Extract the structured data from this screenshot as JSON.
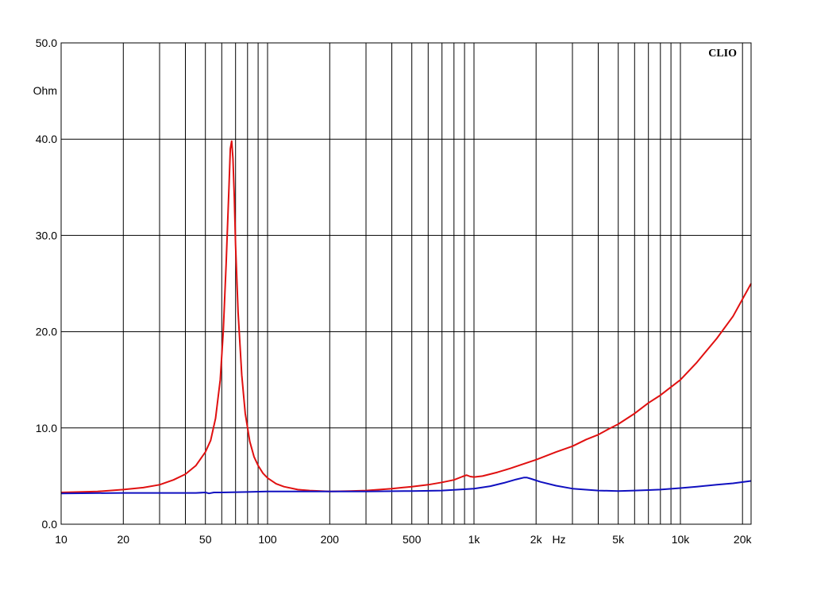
{
  "chart_data": {
    "type": "line",
    "title": "",
    "brand": "CLIO",
    "ylabel": "Ohm",
    "xlabel": "Hz",
    "x_scale": "log",
    "xlim": [
      10,
      22000
    ],
    "ylim": [
      0,
      50
    ],
    "grid": true,
    "y_ticks": [
      {
        "value": 0,
        "label": "0.0"
      },
      {
        "value": 10,
        "label": "10.0"
      },
      {
        "value": 20,
        "label": "20.0"
      },
      {
        "value": 30,
        "label": "30.0"
      },
      {
        "value": 40,
        "label": "40.0"
      },
      {
        "value": 50,
        "label": "50.0"
      }
    ],
    "x_ticks": [
      {
        "value": 10,
        "label": "10"
      },
      {
        "value": 20,
        "label": "20"
      },
      {
        "value": 50,
        "label": "50"
      },
      {
        "value": 100,
        "label": "100"
      },
      {
        "value": 200,
        "label": "200"
      },
      {
        "value": 500,
        "label": "500"
      },
      {
        "value": 1000,
        "label": "1k"
      },
      {
        "value": 2000,
        "label": "2k"
      },
      {
        "value": 5000,
        "label": "5k"
      },
      {
        "value": 10000,
        "label": "10k"
      },
      {
        "value": 20000,
        "label": "20k"
      }
    ],
    "x_minor_gridlines": [
      10,
      20,
      30,
      40,
      50,
      60,
      70,
      80,
      90,
      100,
      200,
      300,
      400,
      500,
      600,
      700,
      800,
      900,
      1000,
      2000,
      3000,
      4000,
      5000,
      6000,
      7000,
      8000,
      9000,
      10000,
      20000
    ],
    "series": [
      {
        "color": "#e01010",
        "x": [
          10,
          15,
          20,
          25,
          30,
          35,
          40,
          45,
          50,
          53,
          56,
          59,
          61,
          63,
          65,
          66,
          67,
          68,
          69,
          70,
          72,
          75,
          78,
          82,
          86,
          90,
          95,
          100,
          110,
          120,
          140,
          160,
          200,
          250,
          300,
          400,
          500,
          600,
          700,
          800,
          880,
          920,
          960,
          1000,
          1100,
          1300,
          1500,
          1700,
          2000,
          2500,
          3000,
          3500,
          4000,
          4500,
          5000,
          6000,
          7000,
          8000,
          10000,
          12000,
          15000,
          18000,
          22000
        ],
        "values": [
          3.3,
          3.4,
          3.6,
          3.8,
          4.1,
          4.6,
          5.2,
          6.1,
          7.5,
          8.7,
          11.0,
          15.0,
          20.0,
          27.0,
          35.0,
          39.0,
          39.8,
          38.0,
          34.0,
          29.0,
          22.0,
          15.5,
          11.5,
          8.6,
          7.0,
          6.1,
          5.3,
          4.8,
          4.2,
          3.9,
          3.6,
          3.5,
          3.4,
          3.45,
          3.5,
          3.7,
          3.9,
          4.1,
          4.35,
          4.6,
          4.95,
          5.1,
          4.95,
          4.9,
          5.0,
          5.4,
          5.8,
          6.2,
          6.7,
          7.5,
          8.1,
          8.8,
          9.3,
          9.9,
          10.4,
          11.5,
          12.6,
          13.4,
          15.0,
          16.8,
          19.3,
          21.6,
          25.0
        ]
      },
      {
        "color": "#1010c0",
        "x": [
          10,
          20,
          30,
          45,
          50,
          52,
          55,
          60,
          80,
          100,
          200,
          300,
          500,
          700,
          1000,
          1200,
          1400,
          1600,
          1750,
          1800,
          1900,
          2100,
          2500,
          3000,
          4000,
          5000,
          6000,
          7000,
          8000,
          10000,
          12000,
          15000,
          18000,
          22000
        ],
        "values": [
          3.2,
          3.25,
          3.25,
          3.25,
          3.3,
          3.2,
          3.3,
          3.3,
          3.35,
          3.4,
          3.4,
          3.4,
          3.45,
          3.5,
          3.7,
          3.95,
          4.3,
          4.65,
          4.85,
          4.85,
          4.7,
          4.4,
          4.0,
          3.7,
          3.5,
          3.45,
          3.5,
          3.55,
          3.6,
          3.75,
          3.9,
          4.1,
          4.25,
          4.5
        ]
      }
    ]
  }
}
